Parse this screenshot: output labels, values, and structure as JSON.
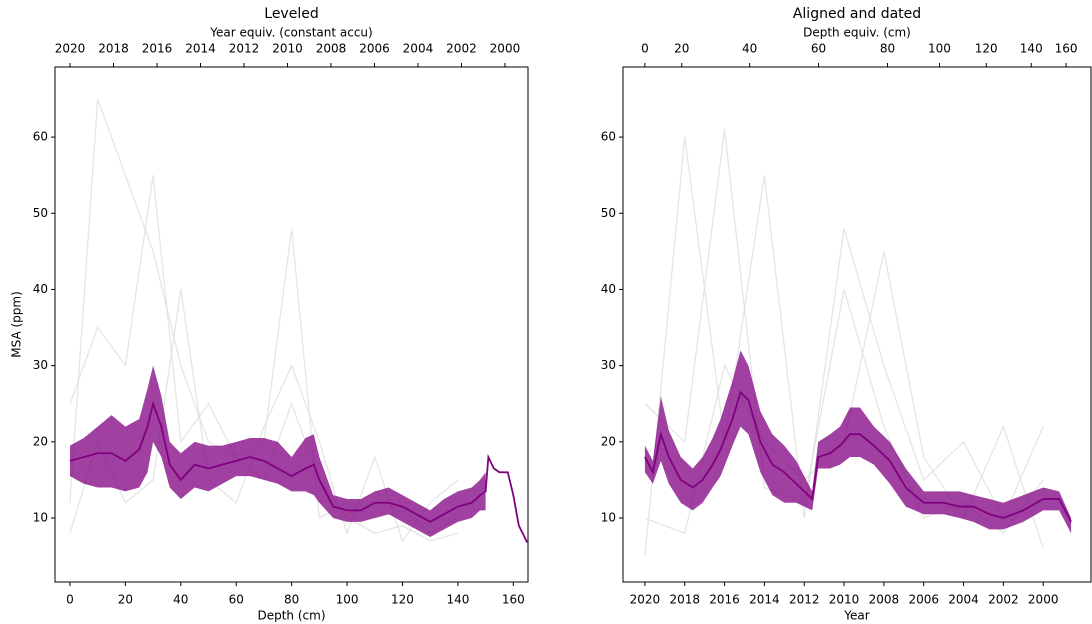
{
  "chart_data": [
    {
      "type": "line",
      "title": "Leveled",
      "x2label": "Year equiv. (constant accu)",
      "xlabel": "Depth (cm)",
      "ylabel": "MSA (ppm)",
      "xlim": [
        -5.4,
        165.3
      ],
      "xticks": [
        0,
        20,
        40,
        60,
        80,
        100,
        120,
        140,
        160
      ],
      "ylim": [
        1.6,
        69.2
      ],
      "yticks": [
        10,
        20,
        30,
        40,
        50,
        60
      ],
      "x2lim": [
        2020.69,
        1998.94
      ],
      "x2ticks": [
        2020,
        2018,
        2016,
        2014,
        2012,
        2010,
        2008,
        2006,
        2004,
        2002,
        2000
      ],
      "series": [
        {
          "color": "#dedede",
          "x": [
            0,
            10,
            20,
            30,
            40,
            50,
            60,
            70,
            80,
            90,
            100,
            110,
            120,
            130,
            140
          ],
          "values": [
            12,
            65,
            55,
            45,
            30,
            20,
            18,
            15,
            25,
            15,
            10,
            8,
            9,
            7,
            8
          ]
        },
        {
          "color": "#dedede",
          "x": [
            0,
            10,
            20,
            30,
            40,
            50,
            60,
            70,
            80,
            90,
            100,
            110,
            120,
            130,
            140
          ],
          "values": [
            25,
            35,
            30,
            55,
            20,
            25,
            18,
            20,
            48,
            10,
            12,
            10,
            11,
            8,
            10
          ]
        },
        {
          "color": "#dedede",
          "x": [
            0,
            10,
            20,
            30,
            40,
            50,
            60,
            70,
            80,
            90,
            100,
            110,
            120,
            130,
            140
          ],
          "values": [
            8,
            20,
            12,
            15,
            40,
            15,
            12,
            22,
            30,
            20,
            8,
            18,
            7,
            12,
            15
          ]
        },
        {
          "color": "#800080",
          "x": [
            0,
            5,
            10,
            15,
            20,
            25,
            28,
            30,
            33,
            36,
            40,
            45,
            50,
            55,
            60,
            65,
            70,
            75,
            80,
            85,
            88,
            90,
            95,
            100,
            105,
            110,
            115,
            120,
            125,
            130,
            135,
            140,
            145,
            148,
            150,
            151,
            153,
            155,
            158,
            160,
            162,
            165
          ],
          "values": [
            17.5,
            18,
            18.5,
            18.5,
            17.5,
            19,
            22,
            25,
            22,
            17,
            15,
            17,
            16.5,
            17,
            17.5,
            18,
            17.5,
            16.5,
            15.5,
            16.5,
            17,
            15,
            11.5,
            11,
            11,
            12,
            12,
            11.5,
            10.5,
            9.5,
            10.5,
            11.5,
            12,
            13,
            13.5,
            18,
            16.5,
            16,
            16,
            13,
            9,
            6.8
          ]
        }
      ],
      "band": {
        "color": "#800080",
        "x": [
          0,
          5,
          10,
          15,
          20,
          25,
          28,
          30,
          33,
          36,
          40,
          45,
          50,
          55,
          60,
          65,
          70,
          75,
          80,
          85,
          88,
          90,
          95,
          100,
          105,
          110,
          115,
          120,
          125,
          130,
          135,
          140,
          145,
          148,
          150
        ],
        "lower": [
          15.5,
          14.5,
          14,
          14,
          13.5,
          14,
          16,
          20,
          18,
          14,
          12.5,
          14,
          13.5,
          14.5,
          15.5,
          15.5,
          15,
          14.5,
          13.5,
          13.5,
          13,
          12,
          10,
          9.5,
          9.5,
          10,
          10.5,
          9.5,
          8.5,
          7.5,
          8.5,
          9.5,
          10,
          11,
          11
        ],
        "upper": [
          19.5,
          20.5,
          22,
          23.5,
          22,
          23,
          27,
          30,
          26,
          20,
          18.5,
          20,
          19.5,
          19.5,
          20,
          20.5,
          20.5,
          20,
          18,
          20.5,
          21,
          18,
          13,
          12.5,
          12.5,
          13.5,
          14,
          13,
          12,
          11,
          12.5,
          13.5,
          14,
          15,
          16
        ]
      }
    },
    {
      "type": "line",
      "title": "Aligned and dated",
      "x2label": "Depth equiv. (cm)",
      "xlabel": "Year",
      "xlim": [
        2021.1,
        1997.6
      ],
      "xticks": [
        2020,
        2018,
        2016,
        2014,
        2012,
        2010,
        2008,
        2006,
        2004,
        2002,
        2000
      ],
      "ylim": [
        1.6,
        69.2
      ],
      "yticks": [
        10,
        20,
        30,
        40,
        50,
        60
      ],
      "x2ticks": [
        0,
        20,
        40,
        60,
        80,
        100,
        120,
        140,
        160
      ],
      "x2tick_years": [
        2020.0,
        2018.15,
        2014.74,
        2011.28,
        2007.82,
        2005.21,
        2002.86,
        2000.6,
        1998.85
      ],
      "series": [
        {
          "color": "#dedede",
          "x": [
            2020,
            2018,
            2016,
            2014,
            2012,
            2010,
            2008,
            2006,
            2004,
            2002,
            2000
          ],
          "values": [
            5,
            60,
            20,
            55,
            10,
            48,
            30,
            15,
            20,
            10,
            22
          ]
        },
        {
          "color": "#dedede",
          "x": [
            2020,
            2018,
            2016,
            2014,
            2012,
            2010,
            2008,
            2006,
            2004,
            2002,
            2000
          ],
          "values": [
            25,
            20,
            61,
            14,
            12,
            40,
            22,
            10,
            12,
            8,
            15
          ]
        },
        {
          "color": "#dedede",
          "x": [
            2020,
            2018,
            2016,
            2014,
            2012,
            2010,
            2008,
            2006,
            2004,
            2002,
            2000
          ],
          "values": [
            10,
            8,
            30,
            20,
            15,
            20,
            45,
            18,
            10,
            22,
            6
          ]
        },
        {
          "color": "#800080",
          "x": [
            2020,
            2019.6,
            2019.2,
            2018.8,
            2018.2,
            2017.6,
            2017.1,
            2016.6,
            2016.2,
            2015.6,
            2015.2,
            2014.8,
            2014.2,
            2013.6,
            2013,
            2012.4,
            2011.6,
            2011.3,
            2010.7,
            2010.2,
            2009.7,
            2009.2,
            2008.5,
            2007.7,
            2006.9,
            2006,
            2005,
            2004.2,
            2003.5,
            2002.7,
            2002,
            2001,
            2000,
            1999.2,
            1998.6
          ],
          "values": [
            18,
            16,
            21,
            18,
            15,
            14,
            15,
            17,
            19,
            23,
            26.5,
            25.5,
            20,
            17,
            16,
            14.5,
            12.5,
            18,
            18.5,
            19.5,
            21,
            21,
            19.5,
            17.5,
            14,
            12,
            12,
            11.5,
            11.5,
            10.5,
            10,
            11,
            12.5,
            12.5,
            9.5
          ]
        }
      ],
      "band": {
        "color": "#800080",
        "x": [
          2020,
          2019.6,
          2019.2,
          2018.8,
          2018.2,
          2017.6,
          2017.1,
          2016.6,
          2016.2,
          2015.6,
          2015.2,
          2014.8,
          2014.2,
          2013.6,
          2013,
          2012.4,
          2011.6,
          2011.3,
          2010.7,
          2010.2,
          2009.7,
          2009.2,
          2008.5,
          2007.7,
          2006.9,
          2006,
          2005,
          2004.2,
          2003.5,
          2002.7,
          2002,
          2001,
          2000,
          1999.2,
          1998.6
        ],
        "lower": [
          16,
          14.5,
          17.5,
          14.5,
          12,
          11,
          12,
          14,
          15.5,
          19.5,
          22,
          21,
          16,
          13,
          12,
          12,
          11,
          16.5,
          16.5,
          17,
          18,
          18,
          17,
          14.5,
          11.5,
          10.5,
          10.5,
          10,
          9.5,
          8.5,
          8.5,
          9.5,
          11,
          11,
          8
        ],
        "upper": [
          19.5,
          17.5,
          26,
          21.5,
          18,
          16.5,
          18,
          20.5,
          23,
          28,
          32,
          30,
          24,
          21,
          19.5,
          17.5,
          13.5,
          20,
          21,
          22,
          24.5,
          24.5,
          22,
          20,
          16.5,
          13.5,
          13.5,
          13.5,
          13,
          12.5,
          12,
          13,
          14,
          13.5,
          10
        ]
      }
    }
  ]
}
